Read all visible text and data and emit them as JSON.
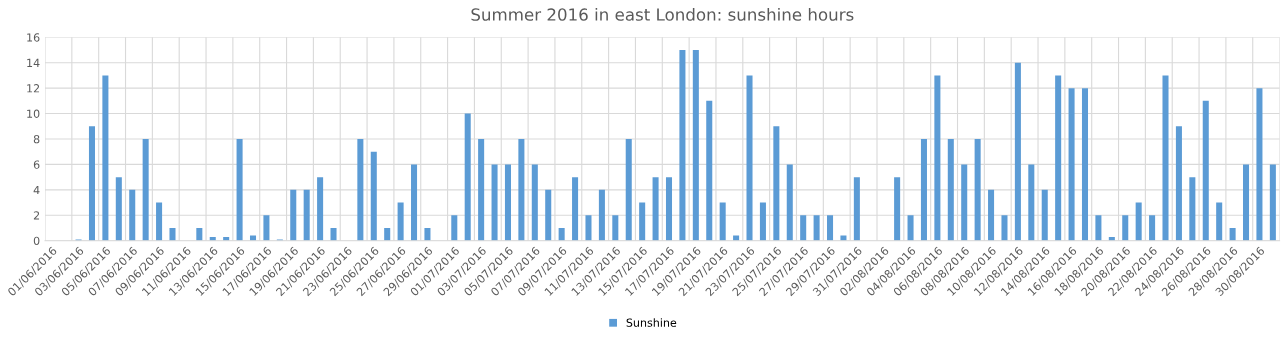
{
  "chart_data": {
    "type": "bar",
    "title": "Summer 2016 in east London: sunshine hours",
    "categories": [
      "01/06/2016",
      null,
      "03/06/2016",
      null,
      "05/06/2016",
      null,
      "07/06/2016",
      null,
      "09/06/2016",
      null,
      "11/06/2016",
      null,
      "13/06/2016",
      null,
      "15/06/2016",
      null,
      "17/06/2016",
      null,
      "19/06/2016",
      null,
      "21/06/2016",
      null,
      "23/06/2016",
      null,
      "25/06/2016",
      null,
      "27/06/2016",
      null,
      "29/06/2016",
      null,
      "01/07/2016",
      null,
      "03/07/2016",
      null,
      "05/07/2016",
      null,
      "07/07/2016",
      null,
      "09/07/2016",
      null,
      "11/07/2016",
      null,
      "13/07/2016",
      null,
      "15/07/2016",
      null,
      "17/07/2016",
      null,
      "19/07/2016",
      null,
      "21/07/2016",
      null,
      "23/07/2016",
      null,
      "25/07/2016",
      null,
      "27/07/2016",
      null,
      "29/07/2016",
      null,
      "31/07/2016",
      null,
      "02/08/2016",
      null,
      "04/08/2016",
      null,
      "06/08/2016",
      null,
      "08/08/2016",
      null,
      "10/08/2016",
      null,
      "12/08/2016",
      null,
      "14/08/2016",
      null,
      "16/08/2016",
      null,
      "18/08/2016",
      null,
      "20/08/2016",
      null,
      "22/08/2016",
      null,
      "24/08/2016",
      null,
      "26/08/2016",
      null,
      "28/08/2016",
      null,
      "30/08/2016",
      null
    ],
    "series": [
      {
        "name": "Sunshine",
        "color": "#5b9bd5",
        "values": [
          0,
          0,
          0.1,
          9,
          13,
          5,
          4,
          8,
          3,
          1,
          0,
          1,
          0.3,
          0.3,
          8,
          0.4,
          2,
          0.1,
          4,
          4,
          5,
          1,
          0,
          8,
          7,
          1,
          3,
          6,
          1,
          0,
          2,
          10,
          8,
          6,
          6,
          8,
          6,
          4,
          1,
          5,
          2,
          4,
          2,
          8,
          3,
          5,
          5,
          15,
          15,
          11,
          3,
          0.4,
          13,
          3,
          9,
          6,
          2,
          2,
          2,
          0.4,
          5,
          0,
          0,
          5,
          2,
          8,
          13,
          8,
          6,
          8,
          4,
          2,
          14,
          6,
          4,
          13,
          12,
          12,
          2,
          0.3,
          2,
          3,
          2,
          13,
          9,
          5,
          11,
          3,
          1,
          6,
          12,
          6
        ]
      }
    ],
    "ylim": [
      0,
      16
    ],
    "yticks": [
      0,
      2,
      4,
      6,
      8,
      10,
      12,
      14,
      16
    ],
    "grid": true,
    "legend": "bottom"
  }
}
